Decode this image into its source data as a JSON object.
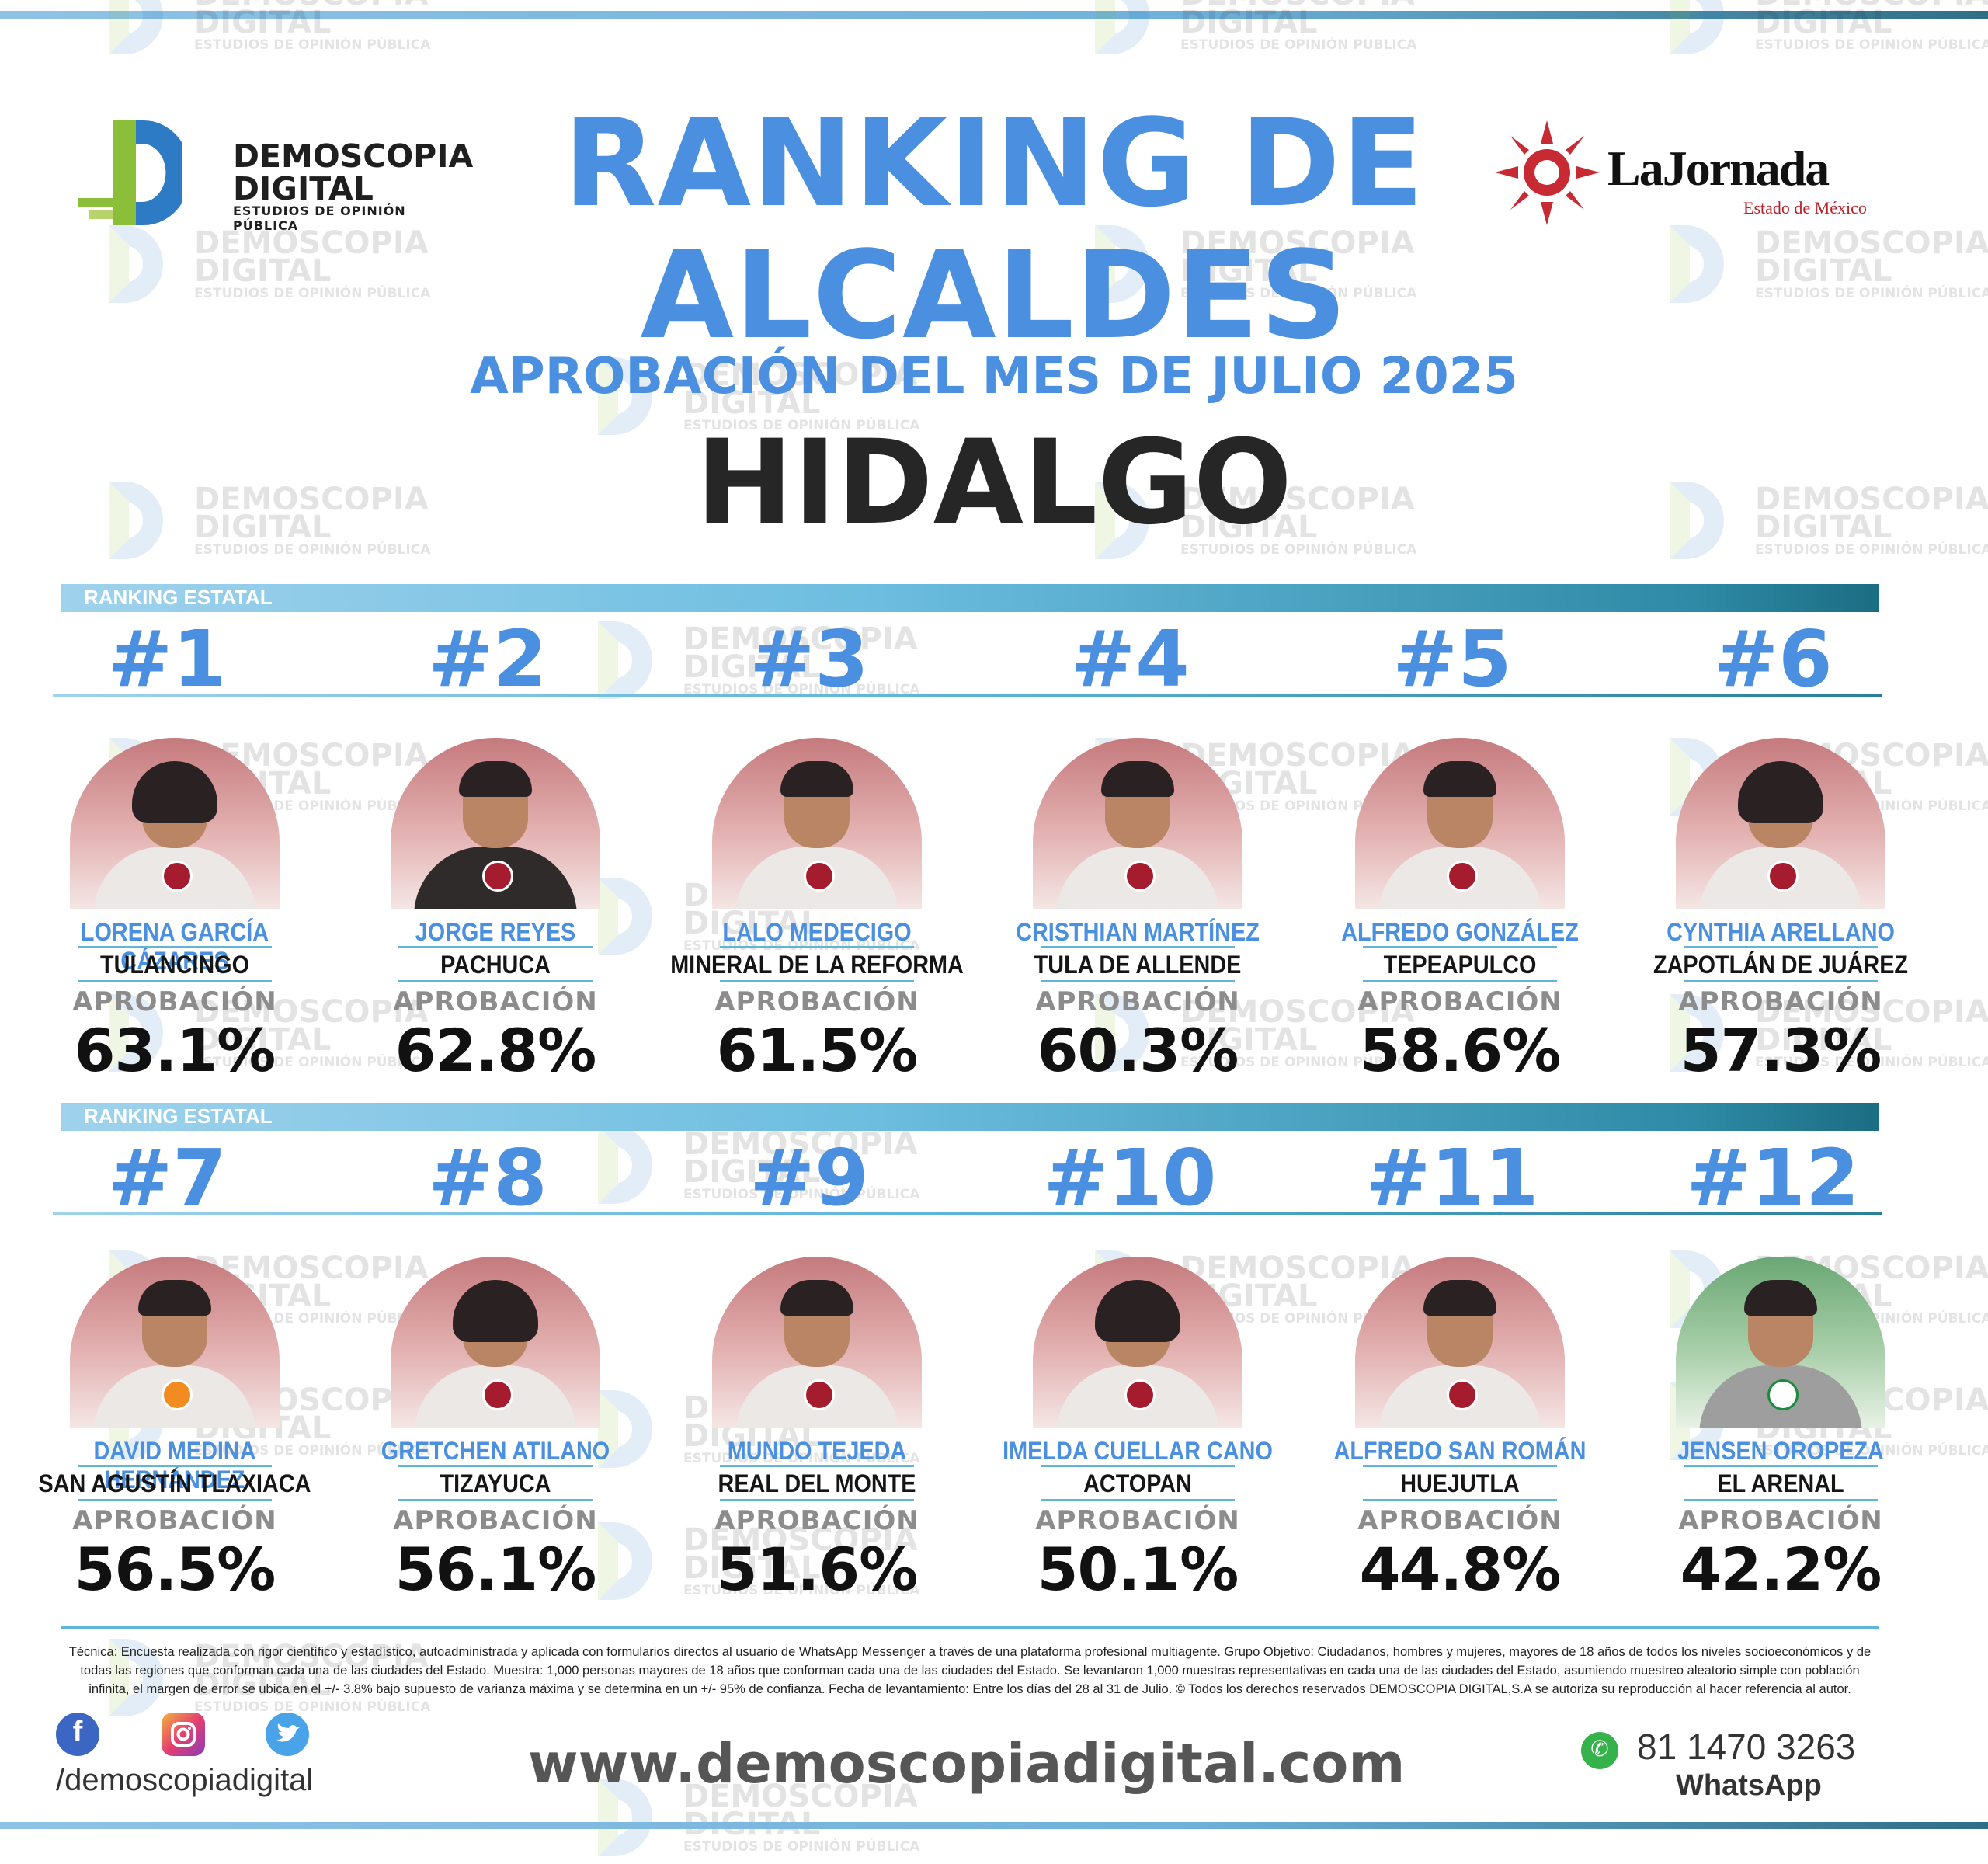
{
  "header": {
    "title_line1": "RANKING DE",
    "title_line2": "ALCALDES",
    "subtitle": "APROBACIÓN DEL MES DE JULIO 2025",
    "state": "HIDALGO"
  },
  "brand": {
    "name_line1": "DEMOSCOPIA",
    "name_line2": "DIGITAL",
    "tagline": "ESTUDIOS DE OPINIÓN PÚBLICA",
    "partner_name": "LaJornada",
    "partner_sub": "Estado de México"
  },
  "watermark": {
    "line1": "DEMOSCOPIA",
    "line2": "DIGITAL",
    "line3": "ESTUDIOS DE OPINIÓN PÚBLICA"
  },
  "section_label": "RANKING ESTATAL",
  "approval_label": "APROBACIÓN",
  "candidates": [
    {
      "rank": "#1",
      "name": "LORENA GARCÍA CÁZARES",
      "city": "TULANCINGO",
      "approval": "63.1%",
      "party": "morena"
    },
    {
      "rank": "#2",
      "name": "JORGE REYES",
      "city": "PACHUCA",
      "approval": "62.8%",
      "party": "morena"
    },
    {
      "rank": "#3",
      "name": "LALO MEDECIGO",
      "city": "MINERAL DE LA REFORMA",
      "approval": "61.5%",
      "party": "morena"
    },
    {
      "rank": "#4",
      "name": "CRISTHIAN MARTÍNEZ",
      "city": "TULA DE ALLENDE",
      "approval": "60.3%",
      "party": "morena"
    },
    {
      "rank": "#5",
      "name": "ALFREDO GONZÁLEZ",
      "city": "TEPEAPULCO",
      "approval": "58.6%",
      "party": "morena"
    },
    {
      "rank": "#6",
      "name": "CYNTHIA ARELLANO",
      "city": "ZAPOTLÁN DE JUÁREZ",
      "approval": "57.3%",
      "party": "morena"
    },
    {
      "rank": "#7",
      "name": "DAVID MEDINA HERNÁNDEZ",
      "city": "SAN AGUSTÍN TLAXIACA",
      "approval": "56.5%",
      "party": "movimiento-ciudadano"
    },
    {
      "rank": "#8",
      "name": "GRETCHEN ATILANO",
      "city": "TIZAYUCA",
      "approval": "56.1%",
      "party": "morena"
    },
    {
      "rank": "#9",
      "name": "MUNDO TEJEDA",
      "city": "REAL DEL MONTE",
      "approval": "51.6%",
      "party": "morena"
    },
    {
      "rank": "#10",
      "name": "IMELDA CUELLAR CANO",
      "city": "ACTOPAN",
      "approval": "50.1%",
      "party": "morena"
    },
    {
      "rank": "#11",
      "name": "ALFREDO SAN ROMÁN",
      "city": "HUEJUTLA",
      "approval": "44.8%",
      "party": "morena"
    },
    {
      "rank": "#12",
      "name": "JENSEN OROPEZA",
      "city": "EL ARENAL",
      "approval": "42.2%",
      "party": "PRI"
    }
  ],
  "footer": {
    "methodology": "Técnica: Encuesta realizada con rigor científico y estadístico, autoadministrada y aplicada con formularios directos al usuario de WhatsApp Messenger a través de una plataforma profesional multiagente. Grupo Objetivo: Ciudadanos, hombres y mujeres, mayores de 18 años de todos los niveles socioeconómicos y de todas las regiones que conforman cada una de las ciudades del Estado. Muestra: 1,000 personas mayores de 18 años que conforman cada una de las ciudades del Estado. Se levantaron 1,000 muestras representativas en cada una de las ciudades del Estado, asumiendo muestreo aleatorio simple con población infinita, el margen de error se ubica en el +/- 3.8% bajo supuesto de varianza máxima y se determina en un +/- 95% de confianza. Fecha de levantamiento: Entre los días del 28 al 31 de Julio. © Todos los derechos reservados DEMOSCOPIA DIGITAL,S.A se autoriza su reproducción al hacer referencia al autor.",
    "handle": "/demoscopiadigital",
    "website": "www.demoscopiadigital.com",
    "phone": "81 1470 3263",
    "whatsapp_label": "WhatsApp"
  },
  "icons": [
    "facebook-icon",
    "instagram-icon",
    "twitter-icon",
    "whatsapp-icon"
  ],
  "colors": {
    "accent_blue": "#4a8fe0",
    "band_teal": "#2e8aa6",
    "morena": "#a51c2f",
    "pri_green": "#1b8c3c"
  }
}
